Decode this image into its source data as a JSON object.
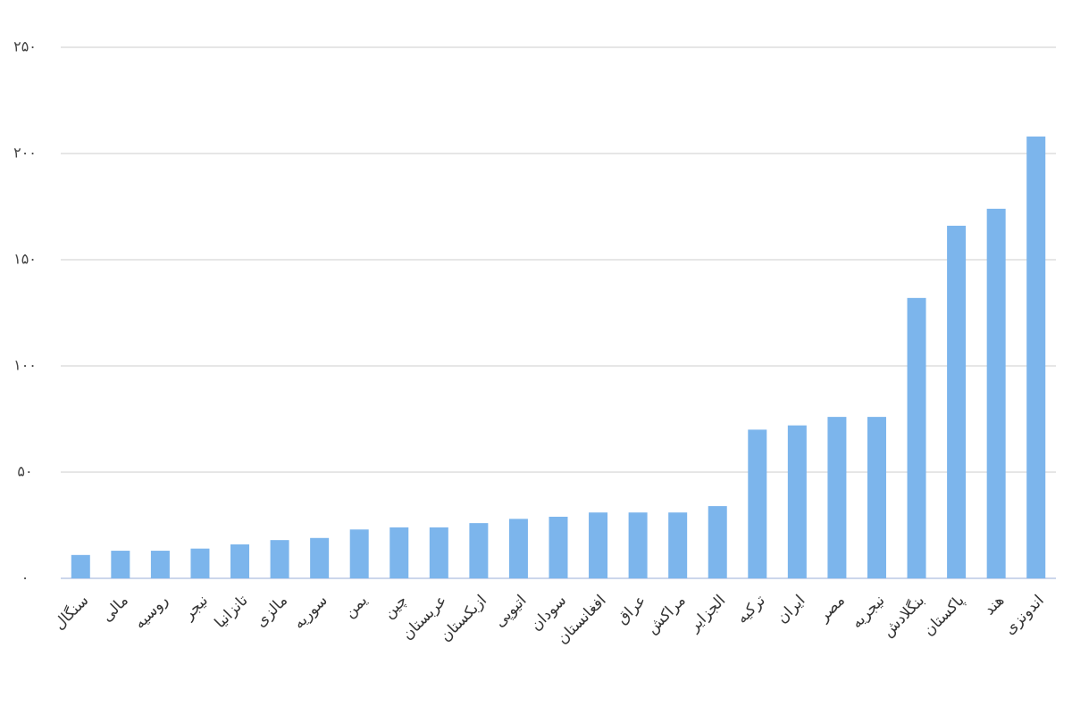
{
  "chart_data": {
    "type": "bar",
    "categories": [
      "سنگال",
      "مالی",
      "روسیه",
      "نیجر",
      "تانزانیا",
      "مالزی",
      "سوریه",
      "یمن",
      "چین",
      "عربستان",
      "ازبکستان",
      "اتیوپی",
      "سودان",
      "افغانستان",
      "عراق",
      "مراکش",
      "الجزایر",
      "ترکیه",
      "ایران",
      "مصر",
      "نیجریه",
      "بنگلادش",
      "پاکستان",
      "هند",
      "اندونزی"
    ],
    "values": [
      11,
      13,
      13,
      14,
      16,
      18,
      19,
      23,
      24,
      24,
      26,
      28,
      29,
      31,
      31,
      31,
      34,
      70,
      72,
      76,
      76,
      132,
      166,
      174,
      208
    ],
    "color": "#7cb5ec",
    "ylim": [
      0,
      250
    ],
    "yticks": [
      {
        "value": 0,
        "label": "۰"
      },
      {
        "value": 50,
        "label": "۵۰"
      },
      {
        "value": 100,
        "label": "۱۰۰"
      },
      {
        "value": 150,
        "label": "۱۵۰"
      },
      {
        "value": 200,
        "label": "۲۰۰"
      },
      {
        "value": 250,
        "label": "۲۵۰"
      }
    ],
    "grid": true
  }
}
